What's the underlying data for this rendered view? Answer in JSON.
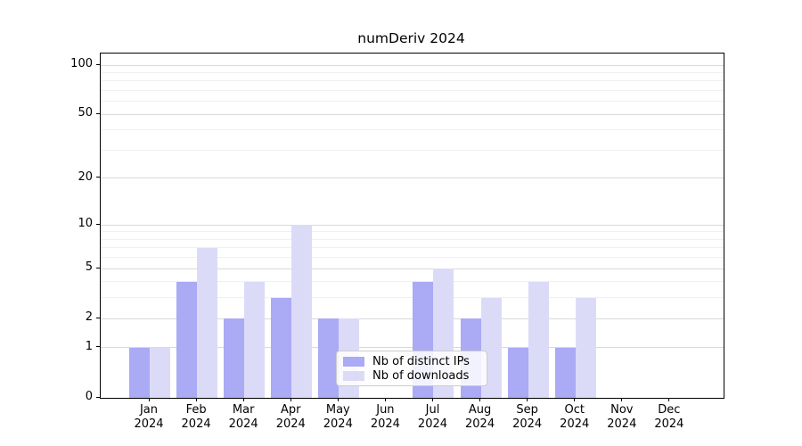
{
  "chart_data": {
    "type": "bar",
    "title": "numDeriv 2024",
    "categories": [
      "Jan",
      "Feb",
      "Mar",
      "Apr",
      "May",
      "Jun",
      "Jul",
      "Aug",
      "Sep",
      "Oct",
      "Nov",
      "Dec"
    ],
    "year_label": "2024",
    "series": [
      {
        "name": "Nb of distinct IPs",
        "color": "#aaaaf5",
        "values": [
          1,
          4,
          2,
          3,
          2,
          0,
          4,
          2,
          1,
          1,
          0,
          0
        ]
      },
      {
        "name": "Nb of downloads",
        "color": "#dbdbf8",
        "values": [
          1,
          7,
          4,
          10,
          2,
          0,
          5,
          3,
          4,
          3,
          0,
          0
        ]
      }
    ],
    "xlabel": "",
    "ylabel": "",
    "yscale": "log1p",
    "ylim": [
      0,
      118
    ],
    "yticks": [
      0,
      1,
      2,
      5,
      10,
      20,
      50,
      100
    ],
    "minor_gridlines": [
      3,
      4,
      6,
      7,
      8,
      9,
      30,
      40,
      60,
      70,
      80,
      90
    ],
    "grid": true,
    "legend_position": "lower-center",
    "colors": {
      "major_grid": "#d9d9d9",
      "minor_grid": "#f0f0f0",
      "axis": "#000000",
      "background": "#ffffff"
    }
  }
}
